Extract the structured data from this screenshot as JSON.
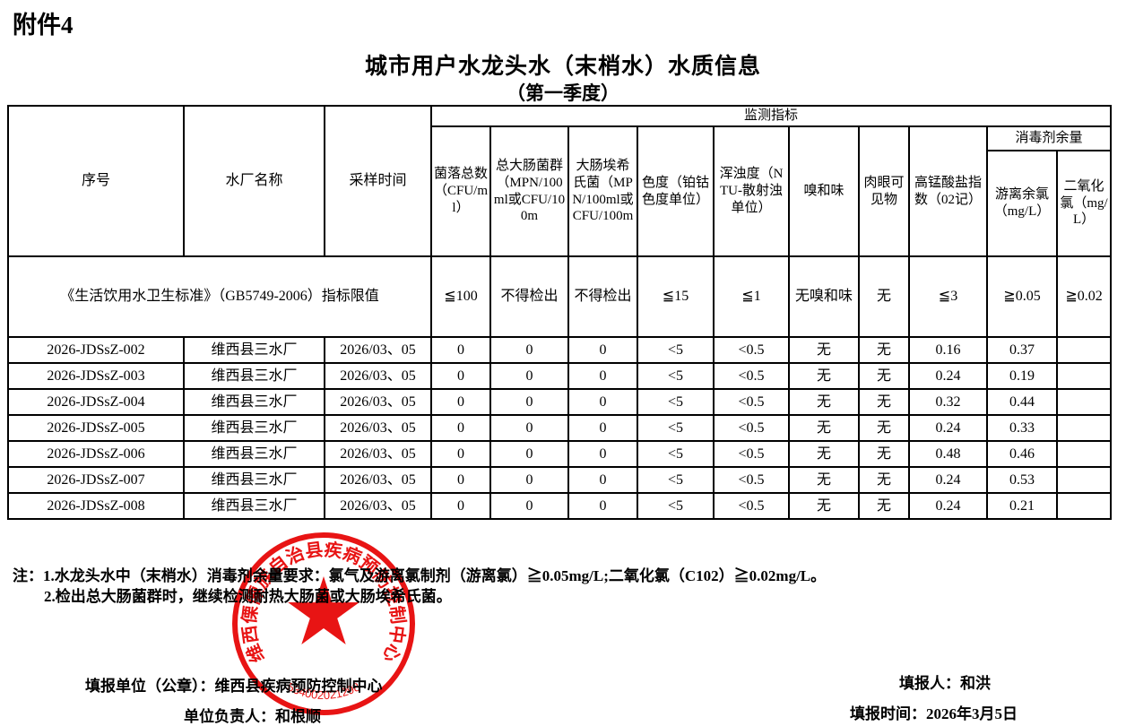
{
  "page": {
    "attachment_label": "附件4",
    "title": "城市用户水龙头水（末梢水）水质信息",
    "subtitle": "（第一季度）"
  },
  "table": {
    "top_header": "监测指标",
    "col_headers": {
      "index": "序号",
      "plant": "水厂名称",
      "sample_time": "采样时间",
      "colony": "菌落总数（CFU/ml）",
      "total_coliform": "总大肠菌群（MPN/100ml或CFU/100m",
      "ecoli": "大肠埃希氏菌（MPN/100ml或CFU/100m",
      "chroma": "色度（铂钴色度单位）",
      "turbidity": "浑浊度（NTU-散射浊单位）",
      "odor": "嗅和味",
      "visible_matter": "肉眼可见物",
      "permanganate": "高锰酸盐指数（02记）",
      "disinfectant_group": "消毒剂余量",
      "free_chlorine": "游离余氯（mg/L）",
      "chlorine_dioxide": "二氧化氯（mg/L）"
    },
    "limits_label": "《生活饮用水卫生标准》（GB5749-2006）指标限值",
    "limits": [
      "≦100",
      "不得检出",
      "不得检出",
      "≦15",
      "≦1",
      "无嗅和味",
      "无",
      "≦3",
      "≧0.05",
      "≧0.02"
    ],
    "rows": [
      [
        "2026-JDSsZ-002",
        "维西县三水厂",
        "2026/03、05",
        "0",
        "0",
        "0",
        "<5",
        "<0.5",
        "无",
        "无",
        "0.16",
        "0.37",
        ""
      ],
      [
        "2026-JDSsZ-003",
        "维西县三水厂",
        "2026/03、05",
        "0",
        "0",
        "0",
        "<5",
        "<0.5",
        "无",
        "无",
        "0.24",
        "0.19",
        ""
      ],
      [
        "2026-JDSsZ-004",
        "维西县三水厂",
        "2026/03、05",
        "0",
        "0",
        "0",
        "<5",
        "<0.5",
        "无",
        "无",
        "0.32",
        "0.44",
        ""
      ],
      [
        "2026-JDSsZ-005",
        "维西县三水厂",
        "2026/03、05",
        "0",
        "0",
        "0",
        "<5",
        "<0.5",
        "无",
        "无",
        "0.24",
        "0.33",
        ""
      ],
      [
        "2026-JDSsZ-006",
        "维西县三水厂",
        "2026/03、05",
        "0",
        "0",
        "0",
        "<5",
        "<0.5",
        "无",
        "无",
        "0.48",
        "0.46",
        ""
      ],
      [
        "2026-JDSsZ-007",
        "维西县三水厂",
        "2026/03、05",
        "0",
        "0",
        "0",
        "<5",
        "<0.5",
        "无",
        "无",
        "0.24",
        "0.53",
        ""
      ],
      [
        "2026-JDSsZ-008",
        "维西县三水厂",
        "2026/03、05",
        "0",
        "0",
        "0",
        "<5",
        "<0.5",
        "无",
        "无",
        "0.24",
        "0.21",
        ""
      ]
    ]
  },
  "notes": {
    "line1": "注：1.水龙头水中（末梢水）消毒剂余量要求：氯气及游离氯制剂（游离氯）≧0.05mg/L;二氧化氯（C102）≧0.02mg/L。",
    "line2": "2.检出总大肠菌群时，继续检测耐热大肠菌或大肠埃希氏菌。"
  },
  "footer": {
    "unit_label": "填报单位（公章）：维西县疾病预防控制中心",
    "responsible_label": "单位负责人：和根顺",
    "filler_label": "填报人：和洪",
    "time_label": "填报时间：2026年3月5日"
  },
  "seal": {
    "ring_text": "维西傈僳族自治县疾病预防控制中心",
    "number": "534002021298",
    "color": "#e60000"
  }
}
